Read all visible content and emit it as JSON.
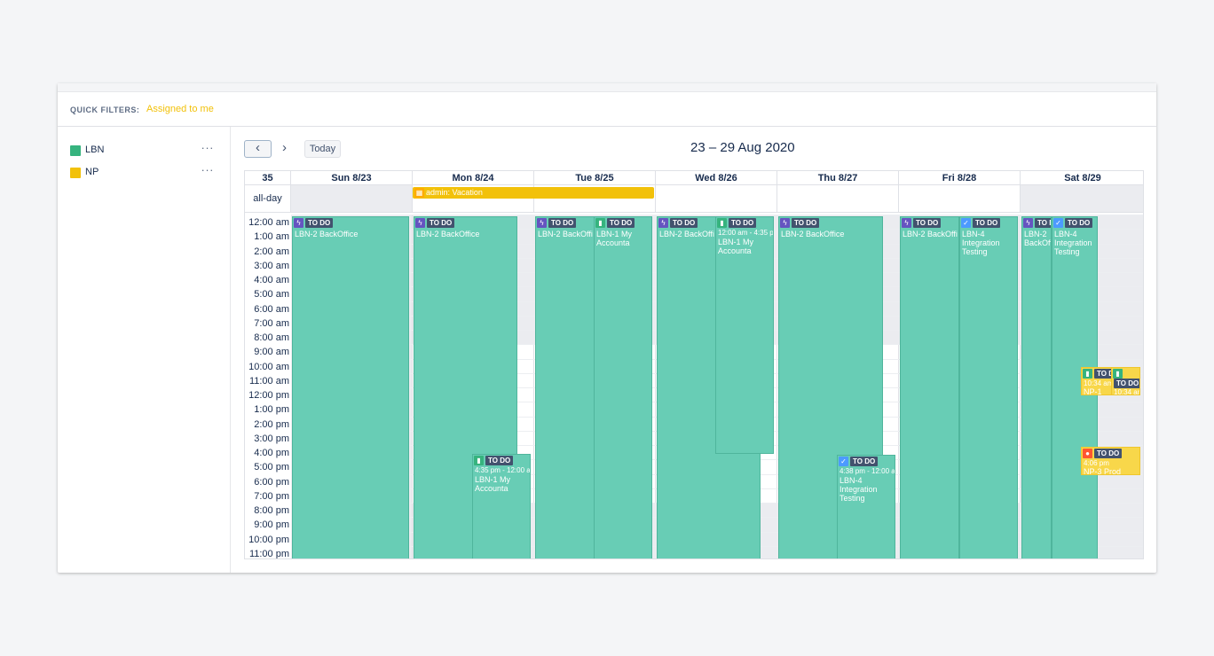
{
  "quick_filters": {
    "label": "QUICK FILTERS:",
    "assigned": "Assigned to me"
  },
  "projects": [
    {
      "key": "LBN",
      "color": "#36b37e"
    },
    {
      "key": "NP",
      "color": "#f2c10a"
    }
  ],
  "more_label": "···",
  "toolbar": {
    "prev": "‹",
    "next": "›",
    "today": "Today",
    "title": "23 – 29 Aug 2020"
  },
  "calendar": {
    "week_num": "35",
    "allday_label": "all-day",
    "days": [
      "Sun 8/23",
      "Mon 8/24",
      "Tue 8/25",
      "Wed 8/26",
      "Thu 8/27",
      "Fri 8/28",
      "Sat 8/29"
    ],
    "hours": [
      "12:00 am",
      "1:00 am",
      "2:00 am",
      "3:00 am",
      "4:00 am",
      "5:00 am",
      "6:00 am",
      "7:00 am",
      "8:00 am",
      "9:00 am",
      "10:00 am",
      "11:00 am",
      "12:00 pm",
      "1:00 pm",
      "2:00 pm",
      "3:00 pm",
      "4:00 pm",
      "5:00 pm",
      "6:00 pm",
      "7:00 pm",
      "8:00 pm",
      "9:00 pm",
      "10:00 pm",
      "11:00 pm"
    ],
    "vacation": "admin: Vacation",
    "badge": "TO DO",
    "badge_short": "TO D",
    "e_lbn2": "LBN-2 BackOffice",
    "e_lbn2_short": "LBN-2 BackOffi",
    "e_lbn2_sat": "LBN-2 BackOffi",
    "e_lbn1": "LBN-1 My Accounta",
    "e_lbn4": "LBN-4 Integration Testing",
    "t_mon_lbn1": "4:35 pm - 12:00 a",
    "t_wed_lbn1": "12:00 am - 4:35 p",
    "t_thu_lbn4": "4:38 pm - 12:00 a",
    "t_np1": "10:34 am",
    "np1": "NP-1",
    "t_np3": "4:06 pm",
    "np3": "NP-3 Prod"
  }
}
